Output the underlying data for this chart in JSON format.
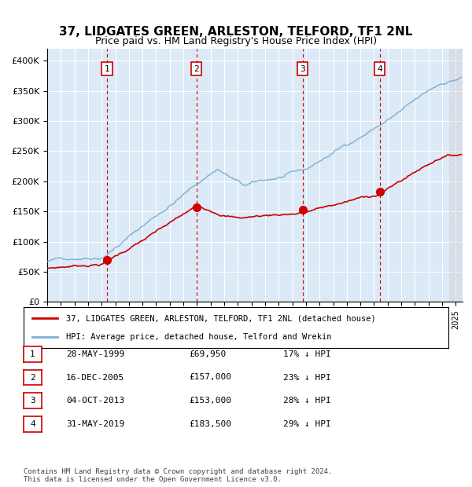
{
  "title": "37, LIDGATES GREEN, ARLESTON, TELFORD, TF1 2NL",
  "subtitle": "Price paid vs. HM Land Registry's House Price Index (HPI)",
  "title_fontsize": 11,
  "subtitle_fontsize": 9,
  "xlim": [
    1995.0,
    2025.5
  ],
  "ylim": [
    0,
    420000
  ],
  "yticks": [
    0,
    50000,
    100000,
    150000,
    200000,
    250000,
    300000,
    350000,
    400000
  ],
  "ytick_labels": [
    "£0",
    "£50K",
    "£100K",
    "£150K",
    "£200K",
    "£250K",
    "£300K",
    "£350K",
    "£400K"
  ],
  "background_color": "#dce9f7",
  "plot_bg": "#dce9f7",
  "grid_color": "#ffffff",
  "hpi_color": "#7bafd4",
  "price_color": "#cc0000",
  "sale_marker_color": "#cc0000",
  "dashed_line_color": "#cc0000",
  "sales": [
    {
      "date_num": 1999.4,
      "price": 69950,
      "label": "1"
    },
    {
      "date_num": 2005.96,
      "price": 157000,
      "label": "2"
    },
    {
      "date_num": 2013.75,
      "price": 153000,
      "label": "3"
    },
    {
      "date_num": 2019.42,
      "price": 183500,
      "label": "4"
    }
  ],
  "legend_entries": [
    {
      "label": "37, LIDGATES GREEN, ARLESTON, TELFORD, TF1 2NL (detached house)",
      "color": "#cc0000"
    },
    {
      "label": "HPI: Average price, detached house, Telford and Wrekin",
      "color": "#7bafd4"
    }
  ],
  "table_rows": [
    {
      "num": "1",
      "date": "28-MAY-1999",
      "price": "£69,950",
      "hpi": "17% ↓ HPI"
    },
    {
      "num": "2",
      "date": "16-DEC-2005",
      "price": "£157,000",
      "hpi": "23% ↓ HPI"
    },
    {
      "num": "3",
      "date": "04-OCT-2013",
      "price": "£153,000",
      "hpi": "28% ↓ HPI"
    },
    {
      "num": "4",
      "date": "31-MAY-2019",
      "price": "£183,500",
      "hpi": "29% ↓ HPI"
    }
  ],
  "footer": "Contains HM Land Registry data © Crown copyright and database right 2024.\nThis data is licensed under the Open Government Licence v3.0.",
  "hatch_color": "#aaaaaa",
  "hatch_start": 2024.5
}
